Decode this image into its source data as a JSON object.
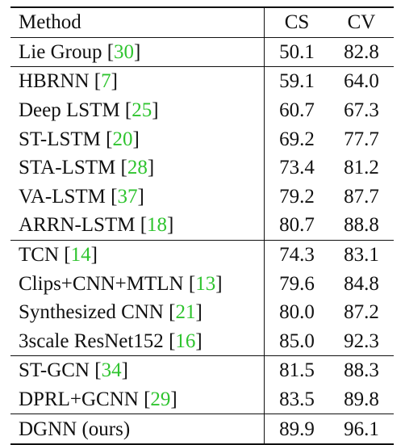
{
  "table": {
    "headers": {
      "method": "Method",
      "cs": "CS",
      "cv": "CV"
    },
    "colors": {
      "citation": "#2fc42f",
      "text": "#111111"
    },
    "groups": [
      {
        "rows": [
          {
            "name": "Lie Group ",
            "ref": "30",
            "cs": "50.1",
            "cv": "82.8"
          }
        ]
      },
      {
        "rows": [
          {
            "name": "HBRNN ",
            "ref": "7",
            "cs": "59.1",
            "cv": "64.0"
          },
          {
            "name": "Deep LSTM ",
            "ref": "25",
            "cs": "60.7",
            "cv": "67.3"
          },
          {
            "name": "ST-LSTM ",
            "ref": "20",
            "cs": "69.2",
            "cv": "77.7"
          },
          {
            "name": "STA-LSTM ",
            "ref": "28",
            "cs": "73.4",
            "cv": "81.2"
          },
          {
            "name": "VA-LSTM ",
            "ref": "37",
            "cs": "79.2",
            "cv": "87.7"
          },
          {
            "name": "ARRN-LSTM ",
            "ref": "18",
            "cs": "80.7",
            "cv": "88.8"
          }
        ]
      },
      {
        "rows": [
          {
            "name": "TCN ",
            "ref": "14",
            "cs": "74.3",
            "cv": "83.1"
          },
          {
            "name": "Clips+CNN+MTLN ",
            "ref": "13",
            "cs": "79.6",
            "cv": "84.8"
          },
          {
            "name": "Synthesized CNN ",
            "ref": "21",
            "cs": "80.0",
            "cv": "87.2"
          },
          {
            "name": "3scale ResNet152 ",
            "ref": "16",
            "cs": "85.0",
            "cv": "92.3"
          }
        ]
      },
      {
        "rows": [
          {
            "name": "ST-GCN ",
            "ref": "34",
            "cs": "81.5",
            "cv": "88.3"
          },
          {
            "name": "DPRL+GCNN ",
            "ref": "29",
            "cs": "83.5",
            "cv": "89.8"
          }
        ]
      },
      {
        "rows": [
          {
            "name": "DGNN (ours)",
            "ref": "",
            "cs": "89.9",
            "cv": "96.1"
          }
        ]
      }
    ]
  }
}
